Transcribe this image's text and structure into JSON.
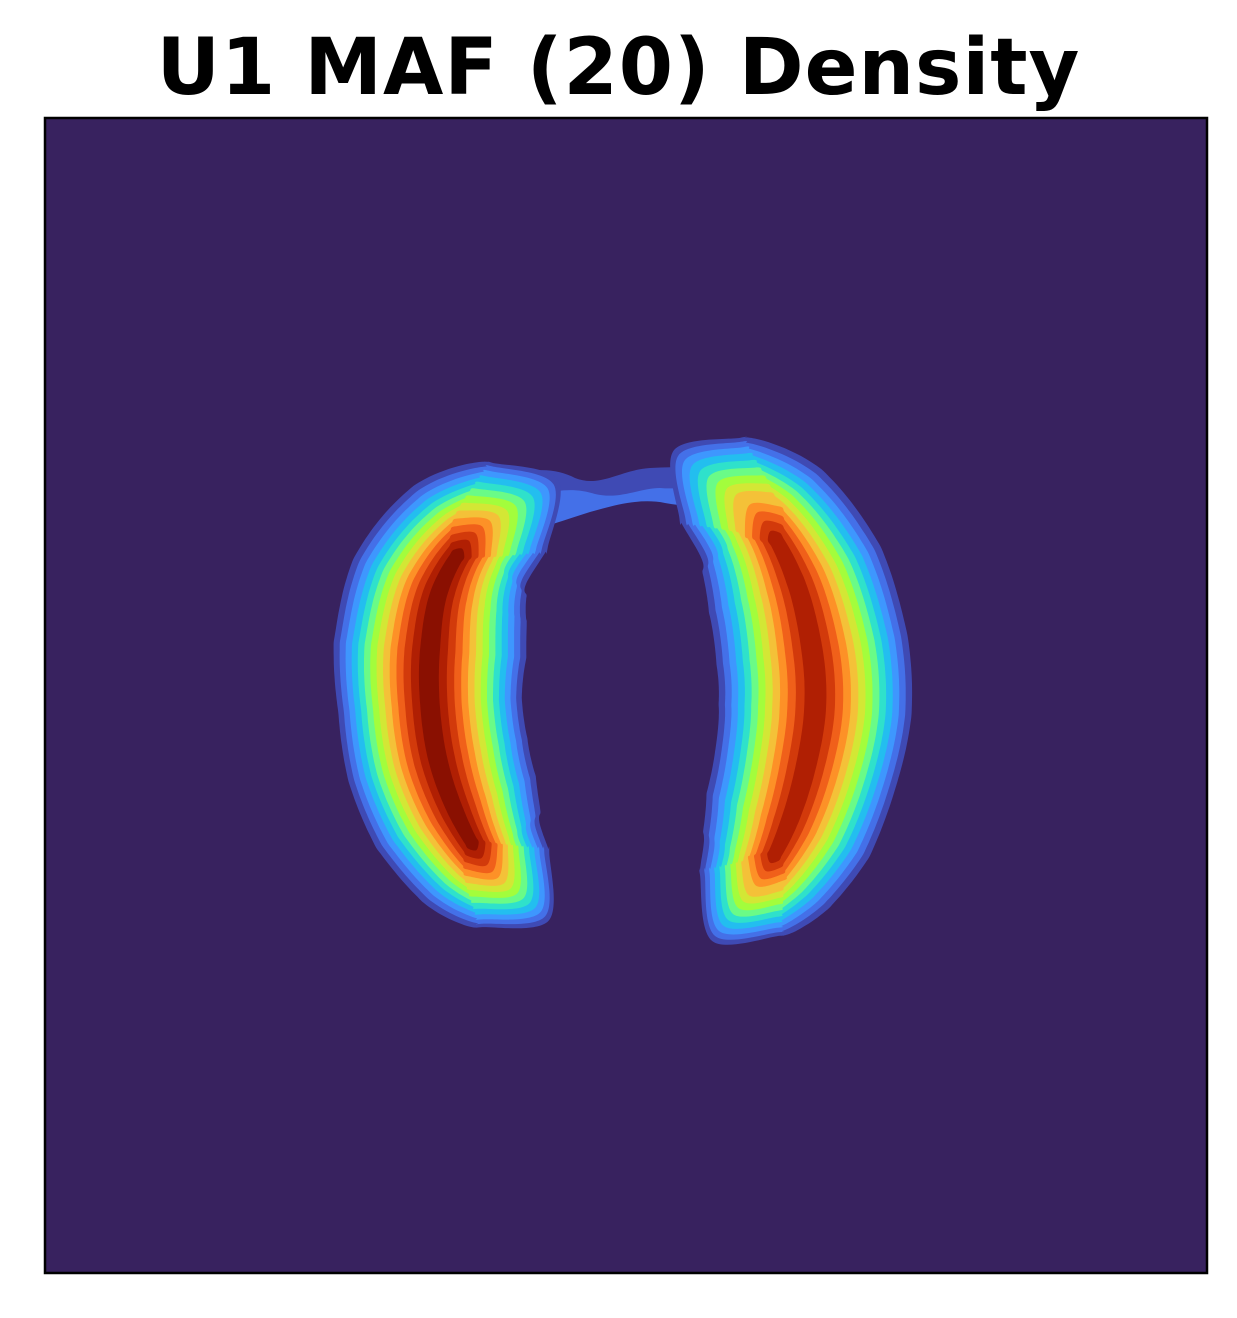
{
  "chart_data": {
    "type": "heatmap",
    "title": "U1 MAF (20) Density",
    "xlabel": "",
    "ylabel": "",
    "ticks": "none",
    "grid": false,
    "colormap": "turbo",
    "colors": {
      "background": "#38225F",
      "levels": [
        "#38225F",
        "#3F4AB4",
        "#4470E8",
        "#3E97FE",
        "#23BEEF",
        "#2FE1CB",
        "#6AFB87",
        "#A3FD3C",
        "#D3E735",
        "#F4C138",
        "#FD9127",
        "#F0601A",
        "#D23A0B",
        "#B01F03",
        "#8A1001"
      ]
    },
    "series": [
      {
        "name": "",
        "shape": "left crescent",
        "peak_level": 14
      },
      {
        "name": "",
        "shape": "right crescent",
        "peak_level": 13
      }
    ]
  }
}
